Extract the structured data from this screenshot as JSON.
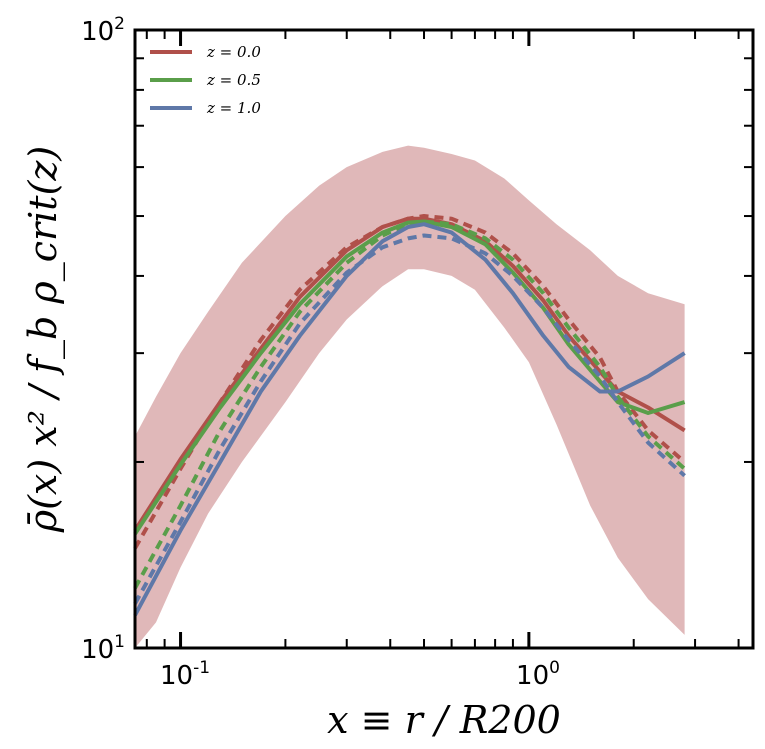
{
  "chart_data": {
    "type": "line",
    "title": "",
    "xlabel": "x ≡ r / R200",
    "ylabel": "ρ̄(x) x² / f_b ρ_crit(z)",
    "xscale": "log",
    "yscale": "log",
    "xlim": [
      0.074,
      4.4
    ],
    "ylim": [
      10,
      100
    ],
    "x_ticks": [
      {
        "base": "10",
        "exp": "-1",
        "value": 0.1
      },
      {
        "base": "10",
        "exp": "0",
        "value": 1.0
      }
    ],
    "y_ticks": [
      {
        "base": "10",
        "exp": "1",
        "value": 10
      },
      {
        "base": "10",
        "exp": "2",
        "value": 100
      }
    ],
    "legend": {
      "position": "top-left",
      "entries": [
        {
          "label": "z = 0.0",
          "color": "#b0504a"
        },
        {
          "label": "z = 0.5",
          "color": "#5a9e4a"
        },
        {
          "label": "z = 1.0",
          "color": "#5f78a8"
        }
      ]
    },
    "band": {
      "color": "#e0b8b9",
      "x": [
        0.074,
        0.085,
        0.1,
        0.12,
        0.15,
        0.2,
        0.25,
        0.3,
        0.38,
        0.45,
        0.5,
        0.6,
        0.7,
        0.85,
        1.0,
        1.2,
        1.5,
        1.8,
        2.2,
        2.8
      ],
      "upper": [
        22.0,
        25.5,
        30.0,
        35.0,
        42.0,
        50.0,
        56.0,
        60.0,
        63.5,
        65.0,
        64.5,
        63.0,
        61.5,
        57.5,
        53.0,
        48.5,
        44.0,
        40.0,
        37.5,
        36.0
      ],
      "lower": [
        10.0,
        11.0,
        13.5,
        16.5,
        20.0,
        25.0,
        30.0,
        34.0,
        38.5,
        41.0,
        41.0,
        40.0,
        38.0,
        33.0,
        29.0,
        23.0,
        17.0,
        14.0,
        12.0,
        10.5
      ]
    },
    "series": [
      {
        "name": "z = 0.0",
        "style": "solid",
        "color": "#b0504a",
        "x": [
          0.074,
          0.1,
          0.13,
          0.17,
          0.22,
          0.3,
          0.38,
          0.45,
          0.5,
          0.6,
          0.75,
          0.9,
          1.1,
          1.3,
          1.6,
          1.8,
          2.2,
          2.8
        ],
        "y": [
          15.5,
          20.2,
          25.0,
          30.5,
          37.0,
          44.0,
          48.0,
          49.5,
          49.5,
          48.5,
          45.5,
          41.5,
          36.5,
          32.0,
          28.0,
          26.0,
          24.5,
          22.5
        ]
      },
      {
        "name": "z = 0.0",
        "style": "dashed",
        "color": "#b0504a",
        "x": [
          0.074,
          0.1,
          0.13,
          0.17,
          0.22,
          0.3,
          0.38,
          0.45,
          0.5,
          0.6,
          0.75,
          0.9,
          1.1,
          1.3,
          1.6,
          1.8,
          2.2,
          2.8
        ],
        "y": [
          14.5,
          19.5,
          25.0,
          31.5,
          38.0,
          44.5,
          48.0,
          49.5,
          50.0,
          49.5,
          47.0,
          43.5,
          38.5,
          34.0,
          29.5,
          26.0,
          22.5,
          20.0
        ]
      },
      {
        "name": "z = 0.5",
        "style": "solid",
        "color": "#5a9e4a",
        "x": [
          0.074,
          0.1,
          0.13,
          0.17,
          0.22,
          0.3,
          0.38,
          0.45,
          0.5,
          0.6,
          0.75,
          0.9,
          1.1,
          1.3,
          1.6,
          1.8,
          2.2,
          2.8
        ],
        "y": [
          15.3,
          19.8,
          24.5,
          30.0,
          36.0,
          43.0,
          47.0,
          48.8,
          49.0,
          48.0,
          45.0,
          40.5,
          35.5,
          31.0,
          27.0,
          25.0,
          24.0,
          25.0
        ]
      },
      {
        "name": "z = 0.5",
        "style": "dashed",
        "color": "#5a9e4a",
        "x": [
          0.074,
          0.1,
          0.13,
          0.17,
          0.22,
          0.3,
          0.38,
          0.45,
          0.5,
          0.6,
          0.75,
          0.9,
          1.1,
          1.3,
          1.6,
          1.8,
          2.2,
          2.8
        ],
        "y": [
          12.5,
          17.0,
          22.5,
          28.5,
          35.0,
          42.0,
          46.5,
          48.5,
          49.0,
          48.5,
          46.0,
          42.5,
          37.5,
          33.0,
          28.5,
          25.5,
          22.0,
          19.5
        ]
      },
      {
        "name": "z = 1.0",
        "style": "solid",
        "color": "#5f78a8",
        "x": [
          0.074,
          0.1,
          0.13,
          0.17,
          0.22,
          0.3,
          0.38,
          0.45,
          0.5,
          0.6,
          0.75,
          0.9,
          1.1,
          1.3,
          1.6,
          1.8,
          2.2,
          2.8
        ],
        "y": [
          11.3,
          15.5,
          20.0,
          26.0,
          32.0,
          40.0,
          45.5,
          48.0,
          48.5,
          47.0,
          42.5,
          37.5,
          32.0,
          28.5,
          26.0,
          26.0,
          27.5,
          30.0
        ]
      },
      {
        "name": "z = 1.0",
        "style": "dashed",
        "color": "#5f78a8",
        "x": [
          0.074,
          0.1,
          0.13,
          0.17,
          0.22,
          0.3,
          0.38,
          0.45,
          0.5,
          0.6,
          0.75,
          0.9,
          1.1,
          1.3,
          1.6,
          1.8,
          2.2,
          2.8
        ],
        "y": [
          11.8,
          16.0,
          21.0,
          27.0,
          33.5,
          40.5,
          44.5,
          46.0,
          46.5,
          46.0,
          43.5,
          40.0,
          35.5,
          31.5,
          27.5,
          25.0,
          21.5,
          19.0
        ]
      }
    ]
  }
}
